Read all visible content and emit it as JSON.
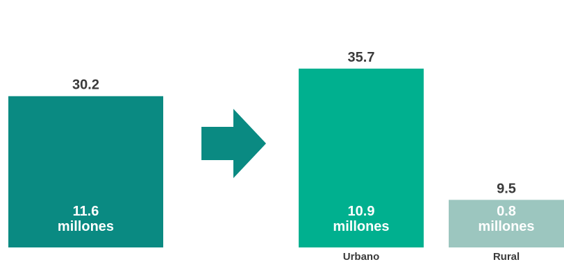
{
  "chart_data": {
    "type": "bar",
    "categories": [
      "",
      "Urbano",
      "Rural"
    ],
    "values": [
      30.2,
      35.7,
      9.5
    ],
    "inner_labels": [
      [
        "11.6",
        "millones"
      ],
      [
        "10.9",
        "millones"
      ],
      [
        "0.8",
        "millones"
      ]
    ],
    "colors": [
      "#0a8a82",
      "#00b08f",
      "#9cc6bf"
    ],
    "arrow": {
      "color": "#0a8a82",
      "icon": "right-arrow-icon"
    },
    "title": "",
    "xlabel": "",
    "ylabel": ""
  }
}
